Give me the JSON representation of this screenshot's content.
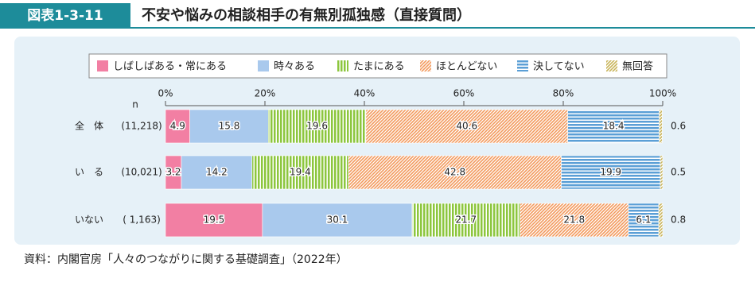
{
  "header": {
    "figure": "図表1-3-11",
    "title": "不安や悩みの相談相手の有無別孤独感（直接質問）"
  },
  "chart_data": {
    "type": "stacked_bar_horizontal",
    "categories": [
      "全　体",
      "い　る",
      "いない"
    ],
    "n_label": "n",
    "counts": [
      "(11,218)",
      "(10,021)",
      "( 1,163)"
    ],
    "series": [
      {
        "name": "しばしばある・常にある",
        "color": "#f27fa3",
        "pattern": "solid",
        "values": [
          4.9,
          3.2,
          19.5
        ]
      },
      {
        "name": "時々ある",
        "color": "#a9c9ed",
        "pattern": "solid",
        "values": [
          15.8,
          14.2,
          30.1
        ]
      },
      {
        "name": "たまにある",
        "color": "#8cc63e",
        "pattern": "vertical",
        "values": [
          19.6,
          19.4,
          21.7
        ]
      },
      {
        "name": "ほとんどない",
        "color": "#f39a5e",
        "pattern": "diagonal",
        "values": [
          40.6,
          42.8,
          21.8
        ]
      },
      {
        "name": "決してない",
        "color": "#5b9fd6",
        "pattern": "horizontal",
        "values": [
          18.4,
          19.9,
          6.1
        ]
      },
      {
        "name": "無回答",
        "color": "#c9b45a",
        "pattern": "diagonal",
        "values": [
          0.6,
          0.5,
          0.8
        ]
      }
    ],
    "xlim": [
      0,
      100
    ],
    "xticks": [
      {
        "value": 0,
        "label": "0%"
      },
      {
        "value": 20,
        "label": "20%"
      },
      {
        "value": 40,
        "label": "40%"
      },
      {
        "value": 60,
        "label": "60%"
      },
      {
        "value": 80,
        "label": "80%"
      },
      {
        "value": 100,
        "label": "100%"
      }
    ],
    "source": "資料：内閣官房「人々のつながりに関する基礎調査」（2022年）"
  }
}
